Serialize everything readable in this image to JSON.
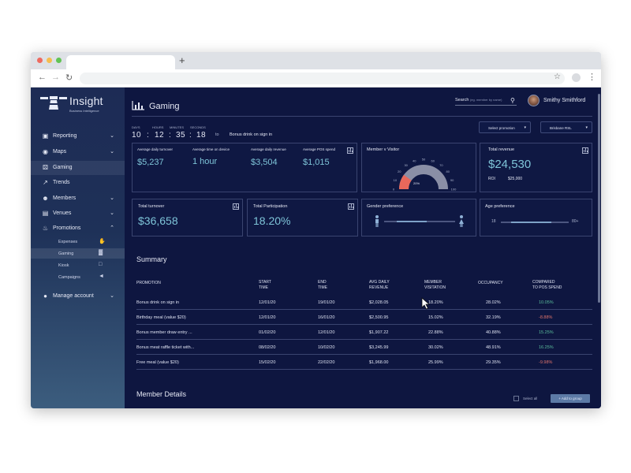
{
  "browser": {
    "new_tab_label": "+"
  },
  "app": {
    "logo_text": "Insight",
    "logo_subtitle": "Business Intelligence",
    "user_name": "Smithy Smithford"
  },
  "sidebar": {
    "items": [
      {
        "label": "Reporting",
        "icon": "briefcase-icon",
        "chevron": "down"
      },
      {
        "label": "Maps",
        "icon": "map-pin-icon",
        "chevron": "down"
      },
      {
        "label": "Gaming",
        "icon": "dice-icon",
        "chevron": ""
      },
      {
        "label": "Trends",
        "icon": "trend-chart-icon",
        "chevron": ""
      },
      {
        "label": "Members",
        "icon": "members-icon",
        "chevron": "down"
      },
      {
        "label": "Venues",
        "icon": "building-icon",
        "chevron": "down"
      },
      {
        "label": "Promotions",
        "icon": "flame-icon",
        "chevron": "up"
      },
      {
        "label": "Manage account",
        "icon": "user-icon",
        "chevron": "down"
      }
    ],
    "sub_items": [
      {
        "label": "Expenses",
        "icon": "hand-money-icon"
      },
      {
        "label": "Gaming",
        "icon": "bar-chart-icon"
      },
      {
        "label": "Kiosk",
        "icon": "monitor-icon"
      },
      {
        "label": "Campaigns",
        "icon": "megaphone-icon"
      }
    ]
  },
  "header": {
    "title": "Gaming",
    "search_label": "Search",
    "search_placeholder": "(eg. member by name)"
  },
  "timer": {
    "labels": {
      "days": "DAYS",
      "hours": "HOURS",
      "minutes": "MINUTES",
      "seconds": "SECONDS"
    },
    "days": "10",
    "hours": "12",
    "minutes": "35",
    "seconds": "18",
    "sep": ":",
    "to_label": "to",
    "promotion": "Bonus drink on sign in"
  },
  "filters": {
    "promotion_select": "Select promotion",
    "venue_select": "Brisbane RSL"
  },
  "stats": {
    "avg_turnover_label": "Average daily turnover",
    "avg_turnover_value": "$5,237",
    "avg_time_label": "Average time on device",
    "avg_time_value": "1 hour",
    "avg_revenue_label": "Average daily revenue",
    "avg_revenue_value": "$3,504",
    "avg_pos_label": "Average POS spend",
    "avg_pos_value": "$1,015",
    "member_visitor_label": "Member v Visitor",
    "gauge_ticks": [
      "0",
      "10",
      "20",
      "30",
      "40",
      "50",
      "60",
      "70",
      "80",
      "90",
      "100"
    ],
    "gauge_value": 20,
    "gauge_value_label": "20%",
    "total_revenue_label": "Total revenue",
    "total_revenue_value": "$24,530",
    "roi_label": "ROI",
    "roi_value": "$25,000",
    "total_turnover_label": "Total turnover",
    "total_turnover_value": "$36,658",
    "total_participation_label": "Total Participation",
    "total_participation_value": "18.20%",
    "gender_label": "Gender preference",
    "gender_value": 0.6,
    "age_label": "Age preference",
    "age_min": "18",
    "age_max": "80+",
    "age_range": [
      0.15,
      0.75
    ]
  },
  "summary": {
    "title": "Summary",
    "headers": {
      "promotion": "PROMOTION",
      "start": "START\nTIME",
      "end": "END\nTIME",
      "revenue": "AVG DAILY\nREVENUE",
      "visitation": "MEMBER\nVISITATION",
      "occupancy": "OCCUPANCY",
      "compared": "COMPARED\nTO POS SPEND"
    },
    "rows": [
      {
        "promotion": "Bonus drink on sign in",
        "start": "12/01/20",
        "end": "19/01/20",
        "revenue": "$2,028.05",
        "visitation": "18.20%",
        "occupancy": "28.02%",
        "compared": "10.05%",
        "trend": "pos"
      },
      {
        "promotion": "Birthday meal (value $20)",
        "start": "12/01/20",
        "end": "16/01/20",
        "revenue": "$2,500.95",
        "visitation": "15.02%",
        "occupancy": "32.19%",
        "compared": "-8.88%",
        "trend": "neg"
      },
      {
        "promotion": "Bonus member draw entry ...",
        "start": "01/02/20",
        "end": "12/01/20",
        "revenue": "$1,907.22",
        "visitation": "22.88%",
        "occupancy": "40.88%",
        "compared": "15.25%",
        "trend": "pos"
      },
      {
        "promotion": "Bonus meat raffle ticket with...",
        "start": "08/02/20",
        "end": "10/02/20",
        "revenue": "$3,245.99",
        "visitation": "30.02%",
        "occupancy": "48.91%",
        "compared": "16.25%",
        "trend": "pos"
      },
      {
        "promotion": "Free meal (value $20)",
        "start": "15/02/20",
        "end": "22/02/20",
        "revenue": "$1,968.00",
        "visitation": "25.99%",
        "occupancy": "29.35%",
        "compared": "-9.98%",
        "trend": "neg"
      }
    ]
  },
  "member_details": {
    "title": "Member Details",
    "select_all": "Select all",
    "add_to_group": "+ Add to group"
  },
  "colors": {
    "main_bg": "#0e1640",
    "accent_metric": "#7ec4d8",
    "positive": "#5bbf9c",
    "negative": "#e0746b",
    "gauge_fill": "#e8685b"
  }
}
